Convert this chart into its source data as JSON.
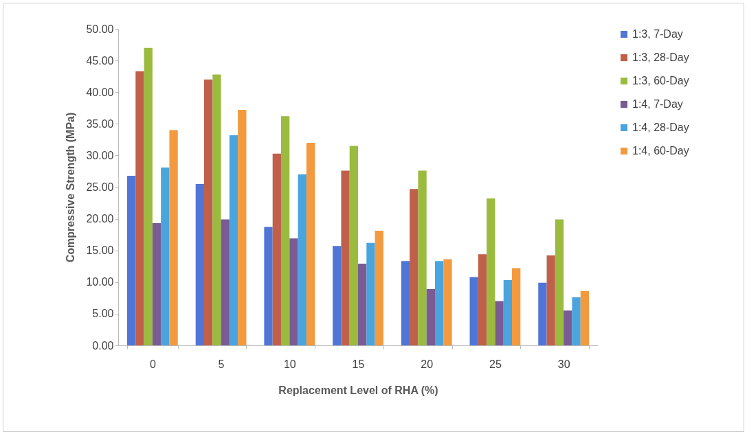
{
  "chart_data": {
    "type": "bar",
    "xlabel": "Replacement Level of RHA (%)",
    "ylabel": "Compressive Strength (MPa)",
    "categories": [
      "0",
      "5",
      "10",
      "15",
      "20",
      "25",
      "30"
    ],
    "series": [
      {
        "name": "1:3, 7-Day",
        "color": "#4f76d6",
        "values": [
          26.8,
          25.5,
          18.7,
          15.7,
          13.3,
          10.8,
          9.9
        ]
      },
      {
        "name": "1:3, 28-Day",
        "color": "#c0604a",
        "values": [
          43.3,
          42.0,
          30.3,
          27.6,
          24.7,
          14.4,
          14.2
        ]
      },
      {
        "name": "1:3, 60-Day",
        "color": "#9bbb3f",
        "values": [
          47.0,
          42.8,
          36.2,
          31.5,
          27.6,
          23.2,
          19.9
        ]
      },
      {
        "name": "1:4, 7-Day",
        "color": "#7a5b94",
        "values": [
          19.3,
          19.9,
          16.9,
          12.9,
          8.9,
          7.0,
          5.5
        ]
      },
      {
        "name": "1:4, 28-Day",
        "color": "#4aa4dd",
        "values": [
          28.1,
          33.2,
          27.0,
          16.2,
          13.3,
          10.3,
          7.6
        ]
      },
      {
        "name": "1:4, 60-Day",
        "color": "#f39a3f",
        "values": [
          34.0,
          37.2,
          32.0,
          18.1,
          13.6,
          12.2,
          8.6
        ]
      }
    ],
    "ylim": [
      0,
      50
    ],
    "yticks": [
      {
        "value": 0,
        "label": "0.00"
      },
      {
        "value": 5,
        "label": "5.00"
      },
      {
        "value": 10,
        "label": "10.00"
      },
      {
        "value": 15,
        "label": "15.00"
      },
      {
        "value": 20,
        "label": "20.00"
      },
      {
        "value": 25,
        "label": "25.00"
      },
      {
        "value": 30,
        "label": "30.00"
      },
      {
        "value": 35,
        "label": "35.00"
      },
      {
        "value": 40,
        "label": "40.00"
      },
      {
        "value": 45,
        "label": "45.00"
      },
      {
        "value": 50,
        "label": "50.00"
      }
    ],
    "grid": false,
    "legend": "right"
  }
}
